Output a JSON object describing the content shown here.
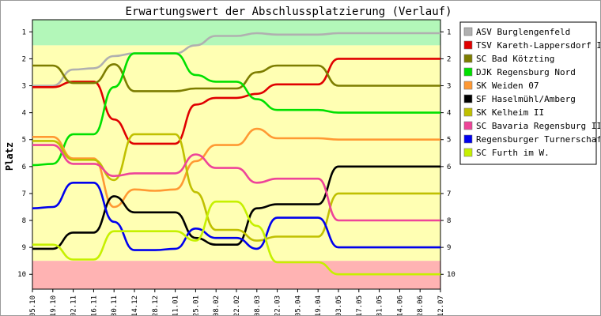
{
  "chart_data": {
    "type": "line",
    "title": "Erwartungswert der Abschlussplatzierung (Verlauf)",
    "ylabel": "Platz",
    "xlabel": "",
    "ylim": [
      0.55,
      10.55
    ],
    "y_reversed": true,
    "y_ticks": [
      1,
      2,
      3,
      4,
      5,
      6,
      7,
      8,
      9,
      10
    ],
    "grid": false,
    "legend_position": "right",
    "bands": [
      {
        "name": "promotion",
        "from": 0.55,
        "to": 1.5,
        "color": "#b3f7b9"
      },
      {
        "name": "middle",
        "from": 1.5,
        "to": 9.5,
        "color": "#ffffb3"
      },
      {
        "name": "relegation",
        "from": 9.5,
        "to": 10.55,
        "color": "#ffb3b3"
      }
    ],
    "categories": [
      "05.10",
      "19.10",
      "02.11",
      "16.11",
      "30.11",
      "14.12",
      "28.12",
      "11.01",
      "25.01",
      "08.02",
      "22.02",
      "08.03",
      "22.03",
      "05.04",
      "19.04",
      "03.05",
      "17.05",
      "31.05",
      "14.06",
      "28.06",
      "12.07"
    ],
    "series": [
      {
        "name": "ASV Burglengenfeld",
        "color": "#b0b0b0",
        "values": [
          3.0,
          3.0,
          2.4,
          2.35,
          1.9,
          1.8,
          1.8,
          1.8,
          1.5,
          1.15,
          1.15,
          1.05,
          1.1,
          1.1,
          1.1,
          1.05,
          1.05,
          1.05,
          1.05,
          1.05,
          1.05
        ]
      },
      {
        "name": "TSV Kareth-Lappersdorf II",
        "color": "#e00000",
        "values": [
          3.05,
          3.05,
          2.85,
          2.85,
          4.25,
          5.15,
          5.15,
          5.15,
          3.7,
          3.45,
          3.45,
          3.3,
          2.95,
          2.95,
          2.95,
          2.0,
          2.0,
          2.0,
          2.0,
          2.0,
          2.0
        ]
      },
      {
        "name": "SC Bad Kötzting",
        "color": "#7d7d00",
        "values": [
          2.25,
          2.25,
          2.9,
          2.9,
          2.2,
          3.2,
          3.2,
          3.2,
          3.1,
          3.1,
          3.1,
          2.5,
          2.25,
          2.25,
          2.25,
          3.0,
          3.0,
          3.0,
          3.0,
          3.0,
          3.0
        ]
      },
      {
        "name": "DJK Regensburg Nord",
        "color": "#00e000",
        "values": [
          5.95,
          5.9,
          4.8,
          4.8,
          3.05,
          1.8,
          1.8,
          1.8,
          2.6,
          2.85,
          2.85,
          3.5,
          3.9,
          3.9,
          3.9,
          4.0,
          4.0,
          4.0,
          4.0,
          4.0,
          4.0
        ]
      },
      {
        "name": "SK Weiden 07",
        "color": "#ff9933",
        "values": [
          4.9,
          4.9,
          5.7,
          5.7,
          7.5,
          6.85,
          6.9,
          6.85,
          5.8,
          5.2,
          5.2,
          4.6,
          4.95,
          4.95,
          4.95,
          5.0,
          5.0,
          5.0,
          5.0,
          5.0,
          5.0
        ]
      },
      {
        "name": "SF Haselmühl/Amberg",
        "color": "#000000",
        "values": [
          9.05,
          9.05,
          8.45,
          8.45,
          7.1,
          7.7,
          7.7,
          7.7,
          8.65,
          8.9,
          8.9,
          7.55,
          7.4,
          7.4,
          7.4,
          6.0,
          6.0,
          6.0,
          6.0,
          6.0,
          6.0
        ]
      },
      {
        "name": "SK Kelheim II",
        "color": "#c0c000",
        "values": [
          5.05,
          5.05,
          5.75,
          5.75,
          6.5,
          4.8,
          4.8,
          4.8,
          6.95,
          8.35,
          8.35,
          8.75,
          8.6,
          8.6,
          8.6,
          7.0,
          7.0,
          7.0,
          7.0,
          7.0,
          7.0
        ]
      },
      {
        "name": "SC Bavaria Regensburg III",
        "color": "#ee4499",
        "values": [
          5.2,
          5.2,
          5.9,
          5.9,
          6.35,
          6.25,
          6.25,
          6.25,
          5.55,
          6.05,
          6.05,
          6.6,
          6.45,
          6.45,
          6.45,
          8.0,
          8.0,
          8.0,
          8.0,
          8.0,
          8.0
        ]
      },
      {
        "name": "Regensburger Turnerschaft",
        "color": "#0000ee",
        "values": [
          7.55,
          7.5,
          6.6,
          6.6,
          8.05,
          9.1,
          9.1,
          9.05,
          8.3,
          8.65,
          8.65,
          9.05,
          7.9,
          7.9,
          7.9,
          9.0,
          9.0,
          9.0,
          9.0,
          9.0,
          9.0
        ]
      },
      {
        "name": "SC Furth im W.",
        "color": "#c6f000",
        "values": [
          8.9,
          8.9,
          9.45,
          9.45,
          8.4,
          8.4,
          8.4,
          8.4,
          8.75,
          7.3,
          7.3,
          8.2,
          9.55,
          9.55,
          9.55,
          10.0,
          10.0,
          10.0,
          10.0,
          10.0,
          10.0
        ]
      }
    ]
  }
}
